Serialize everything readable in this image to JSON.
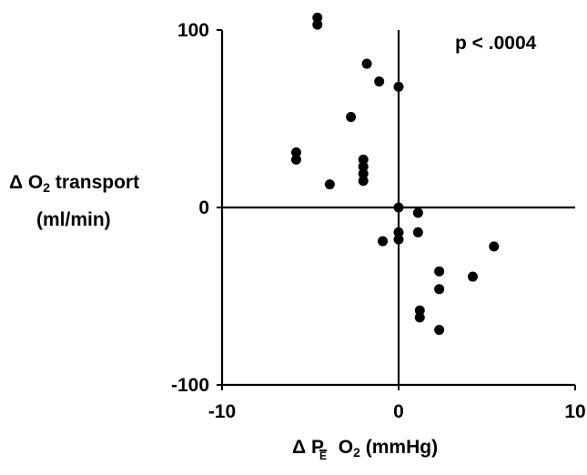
{
  "chart_data": {
    "type": "scatter",
    "xlabel": {
      "delta": "Δ",
      "letter": "P",
      "subscript": "E",
      "middle": " O",
      "subscript2": "2",
      "units": " (mmHg)"
    },
    "ylabel": {
      "line1_prefix": "Δ O",
      "line1_sub": "2",
      "line1_suffix": " transport",
      "line2": "(ml/min)"
    },
    "annotation": "p < .0004",
    "xlim": [
      -10,
      10
    ],
    "ylim": [
      -100,
      100
    ],
    "x_ticks": [
      {
        "value": -10,
        "label": "-10"
      },
      {
        "value": 0,
        "label": "0"
      },
      {
        "value": 10,
        "label": "10"
      }
    ],
    "y_ticks": [
      {
        "value": 100,
        "label": "100"
      },
      {
        "value": 0,
        "label": "0"
      },
      {
        "value": -100,
        "label": "-100"
      }
    ],
    "grid": false,
    "points": [
      {
        "x": -4.6,
        "y": 107
      },
      {
        "x": -4.6,
        "y": 103
      },
      {
        "x": -1.8,
        "y": 81
      },
      {
        "x": -1.1,
        "y": 71
      },
      {
        "x": 0.0,
        "y": 68
      },
      {
        "x": -2.7,
        "y": 51
      },
      {
        "x": -5.8,
        "y": 31
      },
      {
        "x": -5.8,
        "y": 27
      },
      {
        "x": -2.0,
        "y": 27
      },
      {
        "x": -2.0,
        "y": 23
      },
      {
        "x": -2.0,
        "y": 19
      },
      {
        "x": -2.0,
        "y": 15
      },
      {
        "x": -3.9,
        "y": 13
      },
      {
        "x": 0.0,
        "y": 0
      },
      {
        "x": 1.1,
        "y": -3
      },
      {
        "x": 0.0,
        "y": -14
      },
      {
        "x": 1.1,
        "y": -14
      },
      {
        "x": 0.0,
        "y": -18
      },
      {
        "x": -0.9,
        "y": -19
      },
      {
        "x": 5.4,
        "y": -22
      },
      {
        "x": 2.3,
        "y": -36
      },
      {
        "x": 4.2,
        "y": -39
      },
      {
        "x": 2.3,
        "y": -46
      },
      {
        "x": 1.2,
        "y": -58
      },
      {
        "x": 1.2,
        "y": -62
      },
      {
        "x": 2.3,
        "y": -69
      }
    ]
  }
}
